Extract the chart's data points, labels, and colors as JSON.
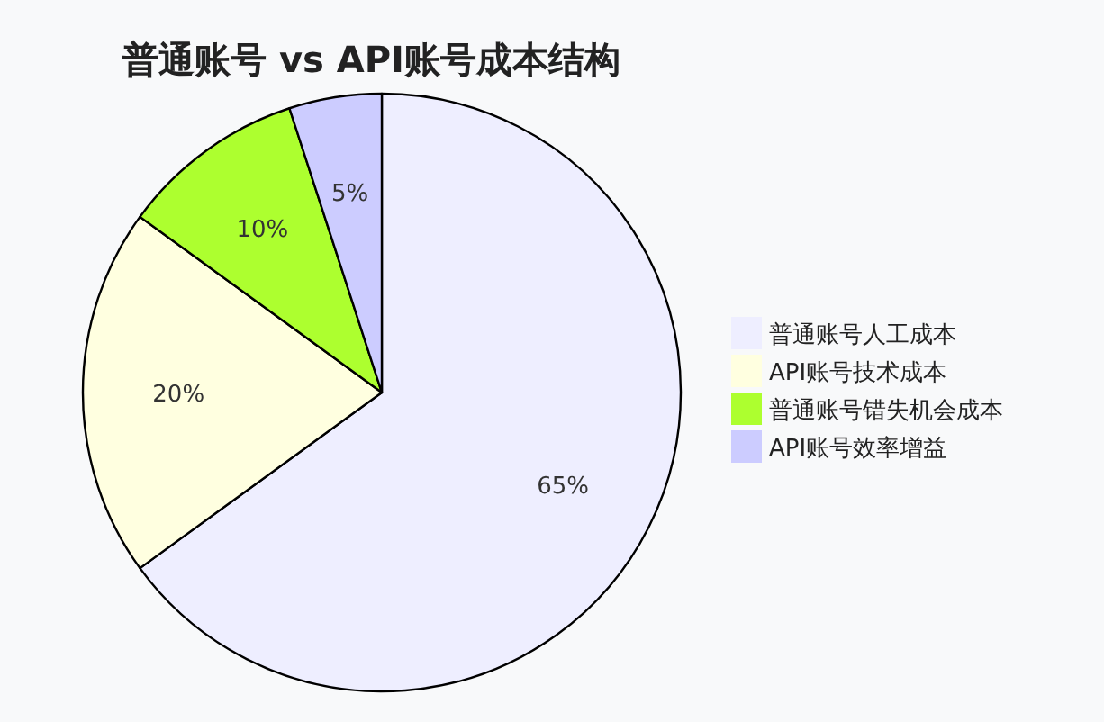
{
  "chart_data": {
    "type": "pie",
    "title": "普通账号 vs API账号成本结构",
    "categories": [
      "普通账号人工成本",
      "API账号技术成本",
      "普通账号错失机会成本",
      "API账号效率增益"
    ],
    "values": [
      65,
      20,
      10,
      5
    ],
    "colors": [
      "#eeeeff",
      "#ffffe0",
      "#adff2f",
      "#ccccff"
    ],
    "value_labels": [
      "65%",
      "20%",
      "10%",
      "5%"
    ],
    "legend": "right"
  }
}
